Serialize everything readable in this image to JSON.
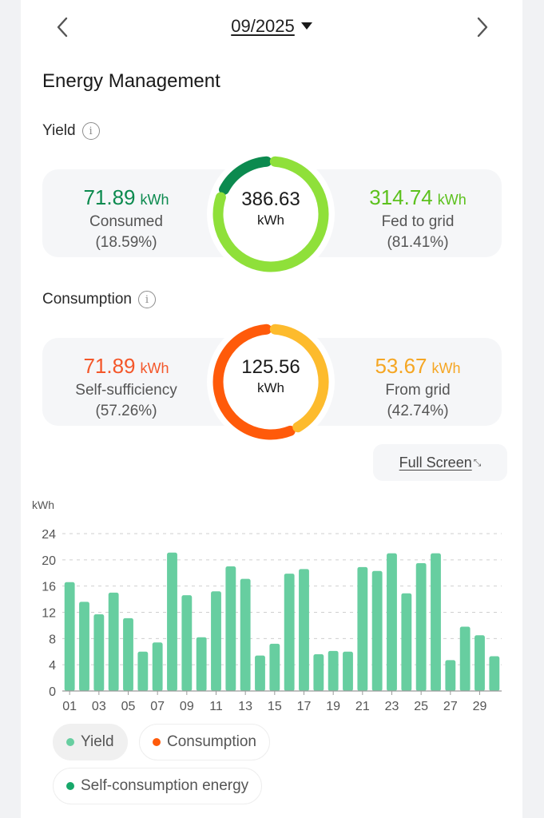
{
  "nav": {
    "month": "09/2025",
    "prev_icon": "chevron-left-icon",
    "next_icon": "chevron-right-icon",
    "caret_icon": "caret-down-icon"
  },
  "title": "Energy Management",
  "yield": {
    "label": "Yield",
    "info_icon": "i",
    "total": "386.63",
    "total_unit": "kWh",
    "consumed": {
      "value": "71.89",
      "unit": "kWh",
      "label": "Consumed",
      "percent": "(18.59%)",
      "fraction": 0.1859,
      "color": "#0c8a4f"
    },
    "fed": {
      "value": "314.74",
      "unit": "kWh",
      "label": "Fed to grid",
      "percent": "(81.41%)",
      "fraction": 0.8141,
      "color": "#8fe03a"
    }
  },
  "consumption": {
    "label": "Consumption",
    "info_icon": "i",
    "total": "125.56",
    "total_unit": "kWh",
    "self": {
      "value": "71.89",
      "unit": "kWh",
      "label": "Self-sufficiency",
      "percent": "(57.26%)",
      "fraction": 0.5726,
      "color": "#ff5a0a"
    },
    "grid": {
      "value": "53.67",
      "unit": "kWh",
      "label": "From grid",
      "percent": "(42.74%)",
      "fraction": 0.4274,
      "color": "#fdbb2d"
    }
  },
  "fullscreen": {
    "label": "Full Screen",
    "icon": "⤡"
  },
  "chart_data": {
    "type": "bar",
    "title": "",
    "xlabel": "",
    "ylabel": "kWh",
    "ylim": [
      0,
      24
    ],
    "yticks": [
      0,
      4,
      8,
      12,
      16,
      20,
      24
    ],
    "grid": true,
    "categories": [
      "01",
      "02",
      "03",
      "04",
      "05",
      "06",
      "07",
      "08",
      "09",
      "10",
      "11",
      "12",
      "13",
      "14",
      "15",
      "16",
      "17",
      "18",
      "19",
      "20",
      "21",
      "22",
      "23",
      "24",
      "25",
      "26",
      "27",
      "28",
      "29",
      "30"
    ],
    "xtick_labels": [
      "01",
      "03",
      "05",
      "07",
      "09",
      "11",
      "13",
      "15",
      "17",
      "19",
      "21",
      "23",
      "25",
      "27",
      "29"
    ],
    "series": [
      {
        "name": "Yield",
        "color": "#67cea0",
        "values": [
          16.6,
          13.6,
          11.7,
          15.0,
          11.1,
          6.0,
          7.4,
          21.1,
          14.6,
          8.2,
          15.2,
          19.0,
          17.1,
          5.4,
          7.2,
          17.9,
          18.6,
          5.6,
          6.1,
          6.0,
          18.9,
          18.3,
          21.0,
          14.9,
          19.5,
          21.0,
          4.7,
          9.8,
          8.5,
          5.3
        ]
      }
    ],
    "legend_position": "bottom-left"
  },
  "legend": [
    {
      "label": "Yield",
      "color": "#67cea0",
      "active": true
    },
    {
      "label": "Consumption",
      "color": "#ff5a0a",
      "active": false
    },
    {
      "label": "Self-consumption energy",
      "color": "#17a86a",
      "active": false
    }
  ]
}
